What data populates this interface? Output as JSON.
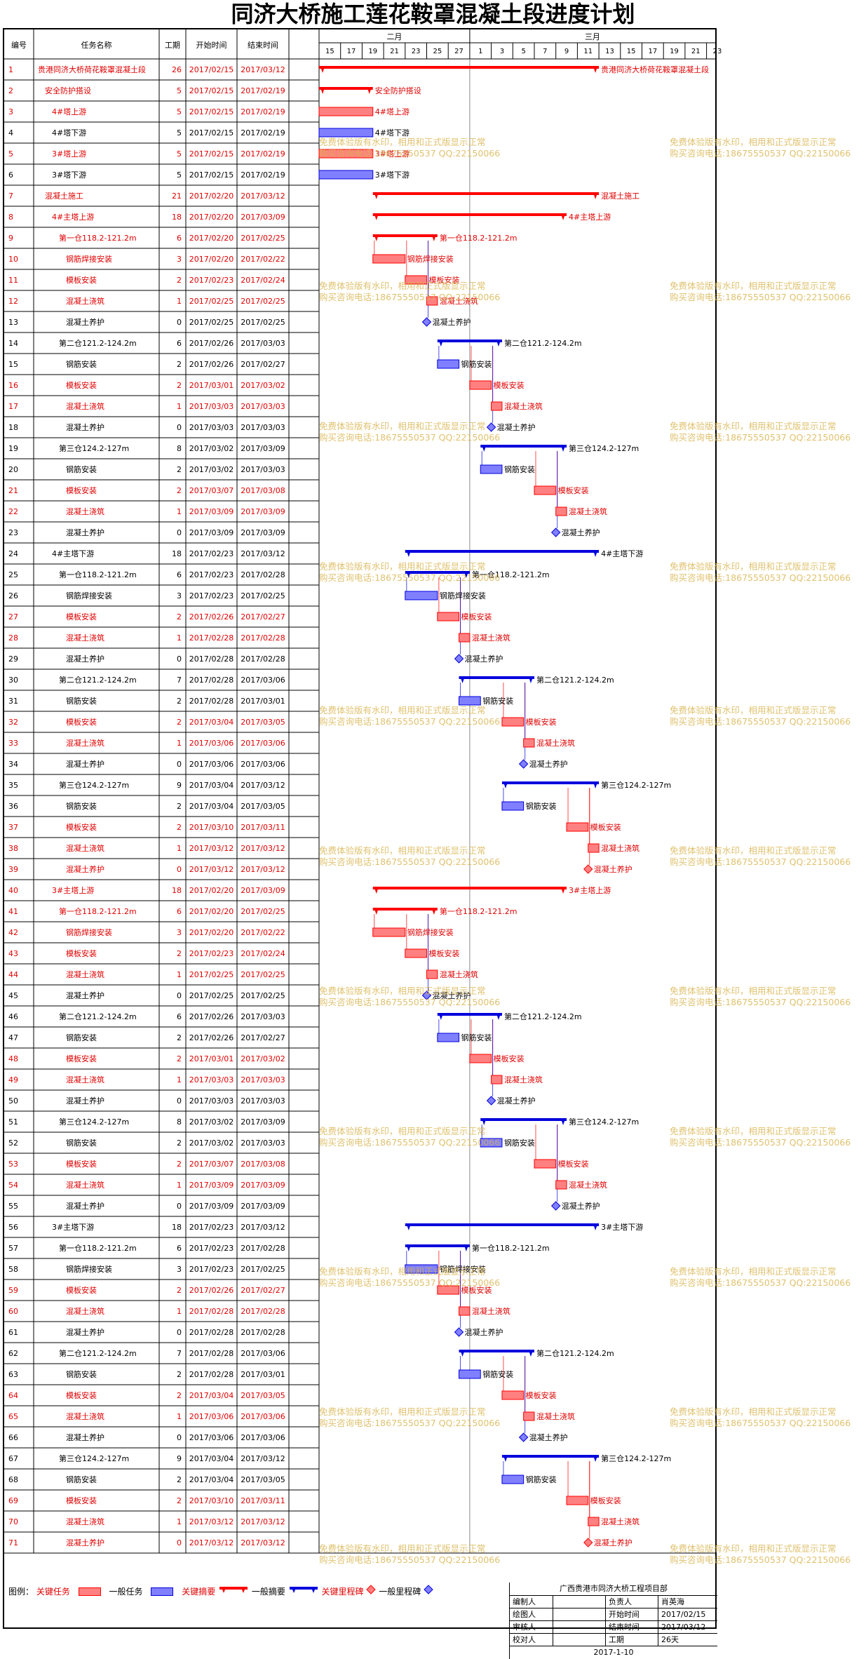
{
  "title": "同济大桥施工莲花鞍罩混凝土段进度计划",
  "columns": [
    "编号",
    "任务名称",
    "工期",
    "开始时间",
    "结束时间"
  ],
  "timeline": {
    "months": [
      "二月",
      "三月"
    ],
    "days": [
      "15",
      "17",
      "19",
      "21",
      "23",
      "25",
      "27",
      "1",
      "3",
      "5",
      "7",
      "9",
      "11",
      "13",
      "15",
      "17",
      "19",
      "21",
      "23"
    ]
  },
  "tasks": [
    {
      "id": "1",
      "name": "贵港同济大桥荷花鞍罩混凝土段",
      "dur": "26",
      "start": "2017/02/15",
      "end": "2017/03/12",
      "critical": true,
      "summary": true,
      "lvl": 0
    },
    {
      "id": "2",
      "name": "安全防护搭设",
      "dur": "5",
      "start": "2017/02/15",
      "end": "2017/02/19",
      "critical": true,
      "summary": true,
      "lvl": 1
    },
    {
      "id": "3",
      "name": "4#塔上游",
      "dur": "5",
      "start": "2017/02/15",
      "end": "2017/02/19",
      "critical": true,
      "summary": false,
      "lvl": 2
    },
    {
      "id": "4",
      "name": "4#塔下游",
      "dur": "5",
      "start": "2017/02/15",
      "end": "2017/02/19",
      "critical": false,
      "summary": false,
      "lvl": 2
    },
    {
      "id": "5",
      "name": "3#塔上游",
      "dur": "5",
      "start": "2017/02/15",
      "end": "2017/02/19",
      "critical": true,
      "summary": false,
      "lvl": 2
    },
    {
      "id": "6",
      "name": "3#塔下游",
      "dur": "5",
      "start": "2017/02/15",
      "end": "2017/02/19",
      "critical": false,
      "summary": false,
      "lvl": 2
    },
    {
      "id": "7",
      "name": "混凝土施工",
      "dur": "21",
      "start": "2017/02/20",
      "end": "2017/03/12",
      "critical": true,
      "summary": true,
      "lvl": 1
    },
    {
      "id": "8",
      "name": "4#主塔上游",
      "dur": "18",
      "start": "2017/02/20",
      "end": "2017/03/09",
      "critical": true,
      "summary": true,
      "lvl": 2
    },
    {
      "id": "9",
      "name": "第一仓118.2-121.2m",
      "dur": "6",
      "start": "2017/02/20",
      "end": "2017/02/25",
      "critical": true,
      "summary": true,
      "lvl": 3
    },
    {
      "id": "10",
      "name": "钢筋焊接安装",
      "dur": "3",
      "start": "2017/02/20",
      "end": "2017/02/22",
      "critical": true,
      "summary": false,
      "lvl": 4
    },
    {
      "id": "11",
      "name": "模板安装",
      "dur": "2",
      "start": "2017/02/23",
      "end": "2017/02/24",
      "critical": true,
      "summary": false,
      "lvl": 4
    },
    {
      "id": "12",
      "name": "混凝土浇筑",
      "dur": "1",
      "start": "2017/02/25",
      "end": "2017/02/25",
      "critical": true,
      "summary": false,
      "lvl": 4
    },
    {
      "id": "13",
      "name": "混凝土养护",
      "dur": "0",
      "start": "2017/02/25",
      "end": "2017/02/25",
      "critical": false,
      "summary": false,
      "lvl": 4
    },
    {
      "id": "14",
      "name": "第二仓121.2-124.2m",
      "dur": "6",
      "start": "2017/02/26",
      "end": "2017/03/03",
      "critical": false,
      "summary": true,
      "lvl": 3
    },
    {
      "id": "15",
      "name": "钢筋安装",
      "dur": "2",
      "start": "2017/02/26",
      "end": "2017/02/27",
      "critical": false,
      "summary": false,
      "lvl": 4
    },
    {
      "id": "16",
      "name": "模板安装",
      "dur": "2",
      "start": "2017/03/01",
      "end": "2017/03/02",
      "critical": true,
      "summary": false,
      "lvl": 4
    },
    {
      "id": "17",
      "name": "混凝土浇筑",
      "dur": "1",
      "start": "2017/03/03",
      "end": "2017/03/03",
      "critical": true,
      "summary": false,
      "lvl": 4
    },
    {
      "id": "18",
      "name": "混凝土养护",
      "dur": "0",
      "start": "2017/03/03",
      "end": "2017/03/03",
      "critical": false,
      "summary": false,
      "lvl": 4
    },
    {
      "id": "19",
      "name": "第三仓124.2-127m",
      "dur": "8",
      "start": "2017/03/02",
      "end": "2017/03/09",
      "critical": false,
      "summary": true,
      "lvl": 3
    },
    {
      "id": "20",
      "name": "钢筋安装",
      "dur": "2",
      "start": "2017/03/02",
      "end": "2017/03/03",
      "critical": false,
      "summary": false,
      "lvl": 4
    },
    {
      "id": "21",
      "name": "模板安装",
      "dur": "2",
      "start": "2017/03/07",
      "end": "2017/03/08",
      "critical": true,
      "summary": false,
      "lvl": 4
    },
    {
      "id": "22",
      "name": "混凝土浇筑",
      "dur": "1",
      "start": "2017/03/09",
      "end": "2017/03/09",
      "critical": true,
      "summary": false,
      "lvl": 4
    },
    {
      "id": "23",
      "name": "混凝土养护",
      "dur": "0",
      "start": "2017/03/09",
      "end": "2017/03/09",
      "critical": false,
      "summary": false,
      "lvl": 4
    },
    {
      "id": "24",
      "name": "4#主塔下游",
      "dur": "18",
      "start": "2017/02/23",
      "end": "2017/03/12",
      "critical": false,
      "summary": true,
      "lvl": 2
    },
    {
      "id": "25",
      "name": "第一仓118.2-121.2m",
      "dur": "6",
      "start": "2017/02/23",
      "end": "2017/02/28",
      "critical": false,
      "summary": true,
      "lvl": 3
    },
    {
      "id": "26",
      "name": "钢筋焊接安装",
      "dur": "3",
      "start": "2017/02/23",
      "end": "2017/02/25",
      "critical": false,
      "summary": false,
      "lvl": 4
    },
    {
      "id": "27",
      "name": "模板安装",
      "dur": "2",
      "start": "2017/02/26",
      "end": "2017/02/27",
      "critical": true,
      "summary": false,
      "lvl": 4
    },
    {
      "id": "28",
      "name": "混凝土浇筑",
      "dur": "1",
      "start": "2017/02/28",
      "end": "2017/02/28",
      "critical": true,
      "summary": false,
      "lvl": 4
    },
    {
      "id": "29",
      "name": "混凝土养护",
      "dur": "0",
      "start": "2017/02/28",
      "end": "2017/02/28",
      "critical": false,
      "summary": false,
      "lvl": 4
    },
    {
      "id": "30",
      "name": "第二仓121.2-124.2m",
      "dur": "7",
      "start": "2017/02/28",
      "end": "2017/03/06",
      "critical": false,
      "summary": true,
      "lvl": 3
    },
    {
      "id": "31",
      "name": "钢筋安装",
      "dur": "2",
      "start": "2017/02/28",
      "end": "2017/03/01",
      "critical": false,
      "summary": false,
      "lvl": 4
    },
    {
      "id": "32",
      "name": "模板安装",
      "dur": "2",
      "start": "2017/03/04",
      "end": "2017/03/05",
      "critical": true,
      "summary": false,
      "lvl": 4
    },
    {
      "id": "33",
      "name": "混凝土浇筑",
      "dur": "1",
      "start": "2017/03/06",
      "end": "2017/03/06",
      "critical": true,
      "summary": false,
      "lvl": 4
    },
    {
      "id": "34",
      "name": "混凝土养护",
      "dur": "0",
      "start": "2017/03/06",
      "end": "2017/03/06",
      "critical": false,
      "summary": false,
      "lvl": 4
    },
    {
      "id": "35",
      "name": "第三仓124.2-127m",
      "dur": "9",
      "start": "2017/03/04",
      "end": "2017/03/12",
      "critical": false,
      "summary": true,
      "lvl": 3
    },
    {
      "id": "36",
      "name": "钢筋安装",
      "dur": "2",
      "start": "2017/03/04",
      "end": "2017/03/05",
      "critical": false,
      "summary": false,
      "lvl": 4
    },
    {
      "id": "37",
      "name": "模板安装",
      "dur": "2",
      "start": "2017/03/10",
      "end": "2017/03/11",
      "critical": true,
      "summary": false,
      "lvl": 4
    },
    {
      "id": "38",
      "name": "混凝土浇筑",
      "dur": "1",
      "start": "2017/03/12",
      "end": "2017/03/12",
      "critical": true,
      "summary": false,
      "lvl": 4
    },
    {
      "id": "39",
      "name": "混凝土养护",
      "dur": "0",
      "start": "2017/03/12",
      "end": "2017/03/12",
      "critical": true,
      "summary": false,
      "lvl": 4
    },
    {
      "id": "40",
      "name": "3#主塔上游",
      "dur": "18",
      "start": "2017/02/20",
      "end": "2017/03/09",
      "critical": true,
      "summary": true,
      "lvl": 2
    },
    {
      "id": "41",
      "name": "第一仓118.2-121.2m",
      "dur": "6",
      "start": "2017/02/20",
      "end": "2017/02/25",
      "critical": true,
      "summary": true,
      "lvl": 3
    },
    {
      "id": "42",
      "name": "钢筋焊接安装",
      "dur": "3",
      "start": "2017/02/20",
      "end": "2017/02/22",
      "critical": true,
      "summary": false,
      "lvl": 4
    },
    {
      "id": "43",
      "name": "模板安装",
      "dur": "2",
      "start": "2017/02/23",
      "end": "2017/02/24",
      "critical": true,
      "summary": false,
      "lvl": 4
    },
    {
      "id": "44",
      "name": "混凝土浇筑",
      "dur": "1",
      "start": "2017/02/25",
      "end": "2017/02/25",
      "critical": true,
      "summary": false,
      "lvl": 4
    },
    {
      "id": "45",
      "name": "混凝土养护",
      "dur": "0",
      "start": "2017/02/25",
      "end": "2017/02/25",
      "critical": false,
      "summary": false,
      "lvl": 4
    },
    {
      "id": "46",
      "name": "第二仓121.2-124.2m",
      "dur": "6",
      "start": "2017/02/26",
      "end": "2017/03/03",
      "critical": false,
      "summary": true,
      "lvl": 3
    },
    {
      "id": "47",
      "name": "钢筋安装",
      "dur": "2",
      "start": "2017/02/26",
      "end": "2017/02/27",
      "critical": false,
      "summary": false,
      "lvl": 4
    },
    {
      "id": "48",
      "name": "模板安装",
      "dur": "2",
      "start": "2017/03/01",
      "end": "2017/03/02",
      "critical": true,
      "summary": false,
      "lvl": 4
    },
    {
      "id": "49",
      "name": "混凝土浇筑",
      "dur": "1",
      "start": "2017/03/03",
      "end": "2017/03/03",
      "critical": true,
      "summary": false,
      "lvl": 4
    },
    {
      "id": "50",
      "name": "混凝土养护",
      "dur": "0",
      "start": "2017/03/03",
      "end": "2017/03/03",
      "critical": false,
      "summary": false,
      "lvl": 4
    },
    {
      "id": "51",
      "name": "第三仓124.2-127m",
      "dur": "8",
      "start": "2017/03/02",
      "end": "2017/03/09",
      "critical": false,
      "summary": true,
      "lvl": 3
    },
    {
      "id": "52",
      "name": "钢筋安装",
      "dur": "2",
      "start": "2017/03/02",
      "end": "2017/03/03",
      "critical": false,
      "summary": false,
      "lvl": 4
    },
    {
      "id": "53",
      "name": "模板安装",
      "dur": "2",
      "start": "2017/03/07",
      "end": "2017/03/08",
      "critical": true,
      "summary": false,
      "lvl": 4
    },
    {
      "id": "54",
      "name": "混凝土浇筑",
      "dur": "1",
      "start": "2017/03/09",
      "end": "2017/03/09",
      "critical": true,
      "summary": false,
      "lvl": 4
    },
    {
      "id": "55",
      "name": "混凝土养护",
      "dur": "0",
      "start": "2017/03/09",
      "end": "2017/03/09",
      "critical": false,
      "summary": false,
      "lvl": 4
    },
    {
      "id": "56",
      "name": "3#主塔下游",
      "dur": "18",
      "start": "2017/02/23",
      "end": "2017/03/12",
      "critical": false,
      "summary": true,
      "lvl": 2
    },
    {
      "id": "57",
      "name": "第一仓118.2-121.2m",
      "dur": "6",
      "start": "2017/02/23",
      "end": "2017/02/28",
      "critical": false,
      "summary": true,
      "lvl": 3
    },
    {
      "id": "58",
      "name": "钢筋焊接安装",
      "dur": "3",
      "start": "2017/02/23",
      "end": "2017/02/25",
      "critical": false,
      "summary": false,
      "lvl": 4
    },
    {
      "id": "59",
      "name": "模板安装",
      "dur": "2",
      "start": "2017/02/26",
      "end": "2017/02/27",
      "critical": true,
      "summary": false,
      "lvl": 4
    },
    {
      "id": "60",
      "name": "混凝土浇筑",
      "dur": "1",
      "start": "2017/02/28",
      "end": "2017/02/28",
      "critical": true,
      "summary": false,
      "lvl": 4
    },
    {
      "id": "61",
      "name": "混凝土养护",
      "dur": "0",
      "start": "2017/02/28",
      "end": "2017/02/28",
      "critical": false,
      "summary": false,
      "lvl": 4
    },
    {
      "id": "62",
      "name": "第二仓121.2-124.2m",
      "dur": "7",
      "start": "2017/02/28",
      "end": "2017/03/06",
      "critical": false,
      "summary": true,
      "lvl": 3
    },
    {
      "id": "63",
      "name": "钢筋安装",
      "dur": "2",
      "start": "2017/02/28",
      "end": "2017/03/01",
      "critical": false,
      "summary": false,
      "lvl": 4
    },
    {
      "id": "64",
      "name": "模板安装",
      "dur": "2",
      "start": "2017/03/04",
      "end": "2017/03/05",
      "critical": true,
      "summary": false,
      "lvl": 4
    },
    {
      "id": "65",
      "name": "混凝土浇筑",
      "dur": "1",
      "start": "2017/03/06",
      "end": "2017/03/06",
      "critical": true,
      "summary": false,
      "lvl": 4
    },
    {
      "id": "66",
      "name": "混凝土养护",
      "dur": "0",
      "start": "2017/03/06",
      "end": "2017/03/06",
      "critical": false,
      "summary": false,
      "lvl": 4
    },
    {
      "id": "67",
      "name": "第三仓124.2-127m",
      "dur": "9",
      "start": "2017/03/04",
      "end": "2017/03/12",
      "critical": false,
      "summary": true,
      "lvl": 3
    },
    {
      "id": "68",
      "name": "钢筋安装",
      "dur": "2",
      "start": "2017/03/04",
      "end": "2017/03/05",
      "critical": false,
      "summary": false,
      "lvl": 4
    },
    {
      "id": "69",
      "name": "模板安装",
      "dur": "2",
      "start": "2017/03/10",
      "end": "2017/03/11",
      "critical": true,
      "summary": false,
      "lvl": 4
    },
    {
      "id": "70",
      "name": "混凝土浇筑",
      "dur": "1",
      "start": "2017/03/12",
      "end": "2017/03/12",
      "critical": true,
      "summary": false,
      "lvl": 4
    },
    {
      "id": "71",
      "name": "混凝土养护",
      "dur": "0",
      "start": "2017/03/12",
      "end": "2017/03/12",
      "critical": true,
      "summary": false,
      "lvl": 4
    }
  ],
  "bar_labels": {
    "1": "贵港同济大桥荷花鞍罩混凝土段",
    "2": "安全防护搭设",
    "3": "4#塔上游",
    "4": "4#塔下游",
    "5": "3#塔上游",
    "6": "3#塔下游",
    "7": "混凝土施工",
    "8": "4#主塔上游",
    "9": "第一仓118.2-121.2m",
    "10": "钢筋焊接安装",
    "11": "模板安装",
    "12": "混凝土浇筑",
    "13": "混凝土养护",
    "14": "第二仓121.2-124.2m",
    "15": "钢筋安装",
    "16": "模板安装",
    "17": "混凝土浇筑",
    "18": "混凝土养护",
    "19": "第三仓124.2-127m",
    "20": "钢筋安装",
    "21": "模板安装",
    "22": "混凝土浇筑",
    "23": "混凝土养护",
    "24": "4#主塔下游",
    "25": "第一仓118.2-121.2m",
    "26": "钢筋焊接安装",
    "27": "模板安装",
    "28": "混凝土浇筑",
    "29": "混凝土养护",
    "30": "第二仓121.2-124.2m",
    "31": "钢筋安装",
    "32": "模板安装",
    "33": "混凝土浇筑",
    "34": "混凝土养护",
    "35": "第三仓124.2-127m",
    "36": "钢筋安装",
    "37": "模板安装",
    "38": "混凝土浇筑",
    "39": "混凝土养护",
    "40": "3#主塔上游",
    "41": "第一仓118.2-121.2m",
    "42": "钢筋焊接安装",
    "43": "模板安装",
    "44": "混凝土浇筑",
    "45": "混凝土养护",
    "46": "第二仓121.2-124.2m",
    "47": "钢筋安装",
    "48": "模板安装",
    "49": "混凝土浇筑",
    "50": "混凝土养护",
    "51": "第三仓124.2-127m",
    "52": "钢筋安装",
    "53": "模板安装",
    "54": "混凝土浇筑",
    "55": "混凝土养护",
    "56": "3#主塔下游",
    "57": "第一仓118.2-121.2m",
    "58": "钢筋焊接安装",
    "59": "模板安装",
    "60": "混凝土浇筑",
    "61": "混凝土养护",
    "62": "第二仓121.2-124.2m",
    "63": "钢筋安装",
    "64": "模板安装",
    "65": "混凝土浇筑",
    "66": "混凝土养护",
    "67": "第三仓124.2-127m",
    "68": "钢筋安装",
    "69": "模板安装",
    "70": "混凝土浇筑",
    "71": "混凝土养护"
  },
  "legend": {
    "label": "图例：",
    "items": [
      {
        "text": "关键任务",
        "kind": "critical-task"
      },
      {
        "text": "一般任务",
        "kind": "task"
      },
      {
        "text": "关键摘要",
        "kind": "critical-summary"
      },
      {
        "text": "一般摘要",
        "kind": "summary"
      },
      {
        "text": "关键里程碑",
        "kind": "critical-milestone"
      },
      {
        "text": "一般里程碑",
        "kind": "milestone"
      }
    ]
  },
  "footer": {
    "company": "广西贵港市同济大桥工程项目部",
    "r1": [
      "编制人",
      "",
      "负责人",
      "肖英海"
    ],
    "r2": [
      "绘图人",
      "",
      "开始时间",
      "2017/02/15"
    ],
    "r3": [
      "审核人",
      "",
      "结束时间",
      "2017/03/12"
    ],
    "r4": [
      "校对人",
      "",
      "工期",
      "26天"
    ],
    "date": "2017-1-10"
  },
  "watermark": {
    "line1": "免费体验版有水印，相用和正式版显示正常",
    "line2": "购买咨询电话:18675550537 QQ:22150066"
  },
  "colors": {
    "critical": "#ff0000",
    "critical_fill": "#ff8080",
    "normal": "#0000dd",
    "normal_fill": "#8080ff",
    "critical_text": "#e00000",
    "watermark": "#d8b24a"
  }
}
